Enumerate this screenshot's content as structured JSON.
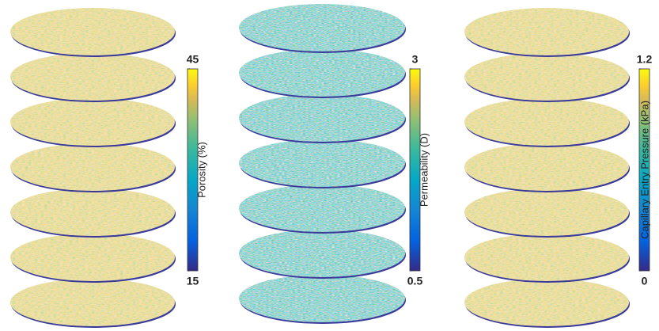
{
  "chart_data": [
    {
      "type": "colormap",
      "colorbar_label": "Porosity (%)",
      "clim": [
        15,
        45
      ],
      "cticks": [
        15,
        45
      ],
      "colormap": "parula"
    },
    {
      "type": "colormap",
      "colorbar_label": "Permeability (D)",
      "clim": [
        0.5,
        3
      ],
      "cticks": [
        0.5,
        3
      ],
      "colormap": "parula"
    },
    {
      "type": "colormap",
      "colorbar_label": "Capillary Entry Pressure (kPa)",
      "clim": [
        0,
        1.2
      ],
      "cticks": [
        0,
        1.2
      ],
      "colormap": "parula"
    }
  ]
}
